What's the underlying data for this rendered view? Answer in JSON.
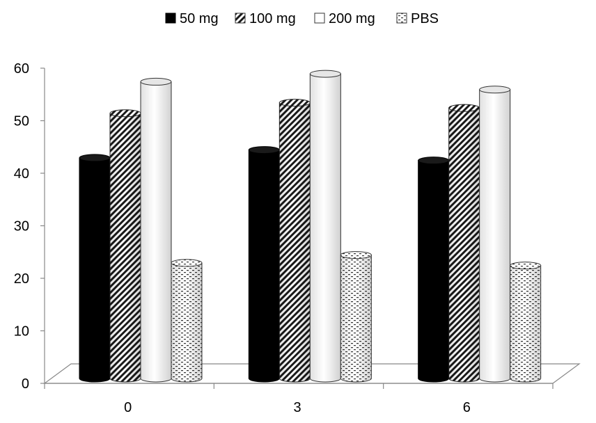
{
  "chart_data": {
    "type": "bar",
    "style": "3d-cylinder",
    "title": "",
    "xlabel": "",
    "ylabel": "",
    "categories": [
      "0",
      "3",
      "6"
    ],
    "ylim": [
      0,
      60
    ],
    "yticks": [
      0,
      10,
      20,
      30,
      40,
      50,
      60
    ],
    "grid": false,
    "legend_position": "top",
    "series": [
      {
        "name": "50 mg",
        "values": [
          42,
          43.5,
          41.5
        ],
        "pattern": "solid-black"
      },
      {
        "name": "100 mg",
        "values": [
          50.5,
          52.5,
          51.5
        ],
        "pattern": "diagonal-hatch"
      },
      {
        "name": "200 mg",
        "values": [
          56.5,
          58,
          55
        ],
        "pattern": "white"
      },
      {
        "name": "PBS",
        "values": [
          22,
          23.5,
          21.5
        ],
        "pattern": "dotted"
      }
    ]
  }
}
